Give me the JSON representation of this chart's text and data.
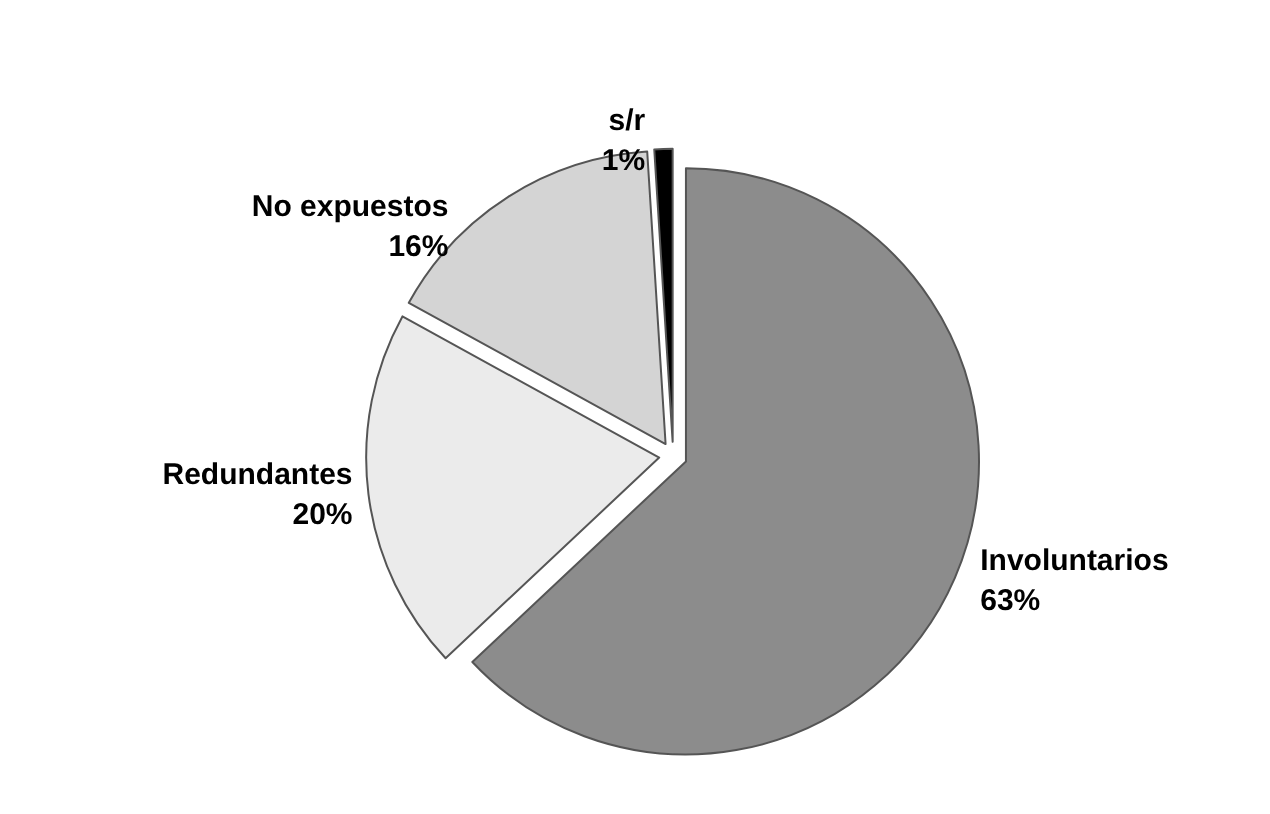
{
  "chart_data": {
    "type": "pie",
    "categories": [
      "Involuntarios",
      "Redundantes",
      "No expuestos",
      "s/r"
    ],
    "values": [
      63,
      20,
      16,
      1
    ],
    "value_labels": [
      "63%",
      "20%",
      "16%",
      "1%"
    ],
    "colors": [
      "#8c8c8c",
      "#ebebeb",
      "#d4d4d4",
      "#000000"
    ]
  }
}
